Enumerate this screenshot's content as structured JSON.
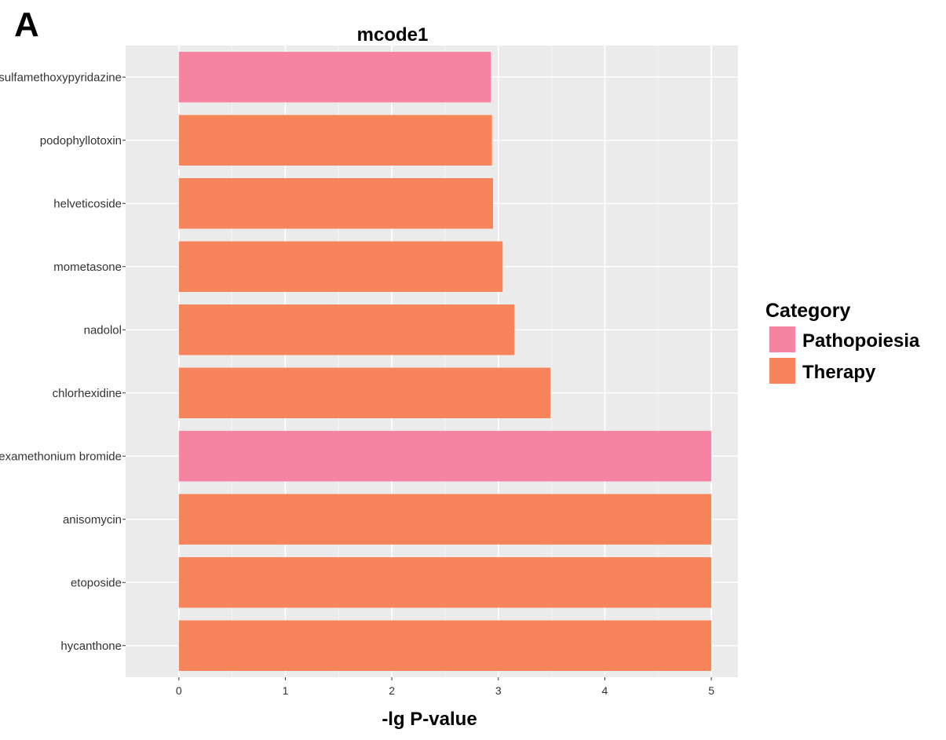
{
  "panel_letter": "A",
  "chart_data": {
    "type": "bar",
    "orientation": "horizontal",
    "title": "mcode1",
    "xlabel": "-lg P-value",
    "ylabel": "",
    "xlim": [
      -0.5,
      5.25
    ],
    "xticks": [
      0,
      1,
      2,
      3,
      4,
      5
    ],
    "grid": true,
    "legend": {
      "title": "Category",
      "position": "right",
      "entries": [
        {
          "label": "Pathopoiesia",
          "color": "#f783a3"
        },
        {
          "label": "Therapy",
          "color": "#f7845a"
        }
      ]
    },
    "categories": [
      "sulfamethoxypyridazine",
      "podophyllotoxin",
      "helveticoside",
      "mometasone",
      "nadolol",
      "chlorhexidine",
      "hexamethonium bromide",
      "anisomycin",
      "etoposide",
      "hycanthone"
    ],
    "values": [
      2.93,
      2.94,
      2.95,
      3.04,
      3.15,
      3.49,
      5.0,
      5.0,
      5.0,
      5.0
    ],
    "category_groups": [
      "Pathopoiesia",
      "Therapy",
      "Therapy",
      "Therapy",
      "Therapy",
      "Therapy",
      "Pathopoiesia",
      "Therapy",
      "Therapy",
      "Therapy"
    ]
  }
}
